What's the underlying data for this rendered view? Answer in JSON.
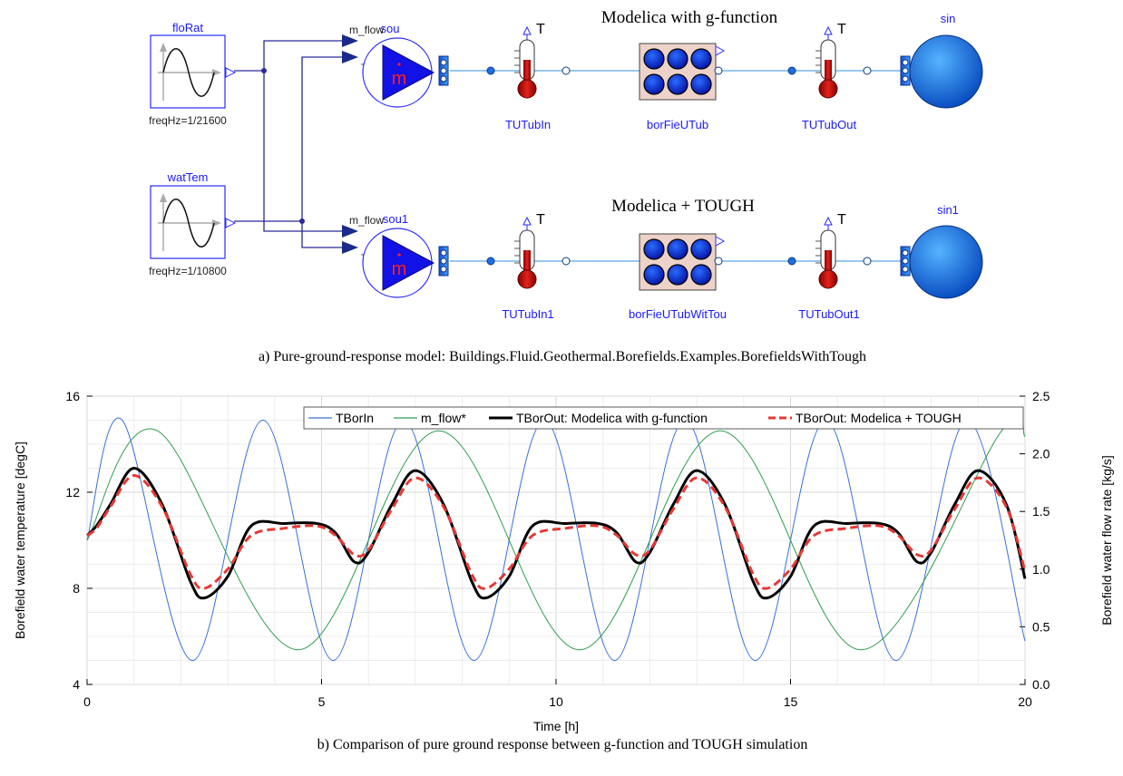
{
  "diagram": {
    "blocks": {
      "floRat": {
        "name": "floRat",
        "param": "freqHz=1/21600"
      },
      "watTem": {
        "name": "watTem",
        "param": "freqHz=1/10800"
      },
      "sou": {
        "name": "sou",
        "input1": "m_flow",
        "input2": "T",
        "symbol": "m"
      },
      "sou1": {
        "name": "sou1",
        "input1": "m_flow",
        "input2": "T",
        "symbol": "m"
      },
      "TUTubIn": {
        "name": "TUTubIn",
        "symbol": "T"
      },
      "TUTubIn1": {
        "name": "TUTubIn1",
        "symbol": "T"
      },
      "borFieUTub": {
        "name": "borFieUTub"
      },
      "borFieUTubWitTou": {
        "name": "borFieUTubWitTou"
      },
      "TUTubOut": {
        "name": "TUTubOut",
        "symbol": "T"
      },
      "TUTubOut1": {
        "name": "TUTubOut1",
        "symbol": "T"
      },
      "sin": {
        "name": "sin"
      },
      "sin1": {
        "name": "sin1"
      }
    },
    "row_titles": [
      "Modelica  with  g-function",
      "Modelica  +  TOUGH"
    ],
    "caption": "a) Pure-ground-response model: Buildings.Fluid.Geothermal.Borefields.Examples.BorefieldsWithTough"
  },
  "chart_data": {
    "type": "line",
    "caption": "b) Comparison of pure ground response between g-function and TOUGH simulation",
    "xlabel": "Time [h]",
    "ylabel_left": "Borefield water temperature [degC]",
    "ylabel_right": "Borefield water flow rate [kg/s]",
    "xlim": [
      0,
      20
    ],
    "ylim_left": [
      4,
      16
    ],
    "ylim_right": [
      0.0,
      2.5
    ],
    "xticks": [
      "0",
      "5",
      "10",
      "15",
      "20"
    ],
    "yticks_left": [
      "4",
      "8",
      "12",
      "16"
    ],
    "yticks_right": [
      "0.0",
      "0.5",
      "1.0",
      "1.5",
      "2.0",
      "2.5"
    ],
    "grid": true,
    "legend_position": "top-right",
    "series": [
      {
        "name": "TBorIn",
        "color": "#3a6fd8",
        "style": "thin",
        "axis": "left",
        "x": [
          0,
          0.75,
          2.25,
          3.75,
          5.25,
          6.75,
          8.25,
          9.75,
          11.25,
          12.75,
          14.25,
          15.75,
          17.25,
          18.75,
          20
        ],
        "y": [
          10,
          15,
          5,
          15,
          5,
          15,
          5,
          15,
          5,
          15,
          5,
          15,
          5,
          15,
          5.8
        ]
      },
      {
        "name": "m_flow*",
        "color": "#2e9e4f",
        "style": "thin",
        "axis": "right",
        "x": [
          0,
          1.5,
          4.5,
          7.5,
          10.5,
          13.5,
          16.5,
          19.5,
          20
        ],
        "y": [
          1.25,
          2.2,
          0.3,
          2.2,
          0.3,
          2.2,
          0.3,
          2.2,
          2.15
        ]
      },
      {
        "name": "TBorOut: Modelica with g-function",
        "color": "#000000",
        "style": "thick",
        "axis": "left",
        "x": [
          0,
          0.2,
          0.5,
          1.0,
          1.6,
          2.2,
          2.5,
          3.0,
          3.5,
          4.2,
          4.9,
          5.3,
          5.7,
          6.0,
          6.5,
          7.0,
          7.6,
          8.2,
          8.5,
          9.0,
          9.5,
          10.2,
          10.9,
          11.3,
          11.7,
          12.0,
          12.5,
          13.0,
          13.6,
          14.2,
          14.5,
          15.0,
          15.5,
          16.2,
          16.9,
          17.3,
          17.7,
          18.0,
          18.5,
          19.0,
          19.6,
          20
        ],
        "y": [
          10.2,
          10.6,
          11.5,
          13.0,
          11.5,
          8.3,
          7.6,
          8.5,
          10.6,
          10.7,
          10.7,
          10.3,
          9.1,
          9.5,
          11.5,
          12.9,
          11.5,
          8.3,
          7.6,
          8.5,
          10.6,
          10.7,
          10.7,
          10.3,
          9.1,
          9.5,
          11.5,
          12.9,
          11.5,
          8.3,
          7.6,
          8.5,
          10.6,
          10.7,
          10.7,
          10.3,
          9.1,
          9.5,
          11.5,
          12.9,
          11.5,
          8.4
        ]
      },
      {
        "name": "TBorOut: Modelica + TOUGH",
        "color": "#e53935",
        "style": "dashed",
        "axis": "left",
        "x": [
          0,
          0.2,
          0.5,
          1.0,
          1.6,
          2.2,
          2.5,
          3.0,
          3.5,
          4.2,
          4.9,
          5.3,
          5.7,
          6.0,
          6.5,
          7.0,
          7.6,
          8.2,
          8.5,
          9.0,
          9.5,
          10.2,
          10.9,
          11.3,
          11.7,
          12.0,
          12.5,
          13.0,
          13.6,
          14.2,
          14.5,
          15.0,
          15.5,
          16.2,
          16.9,
          17.3,
          17.7,
          18.0,
          18.5,
          19.0,
          19.6,
          20
        ],
        "y": [
          10.2,
          10.5,
          11.4,
          12.7,
          11.4,
          8.6,
          8.0,
          8.8,
          10.2,
          10.5,
          10.6,
          10.2,
          9.4,
          9.6,
          11.3,
          12.6,
          11.4,
          8.6,
          8.0,
          8.8,
          10.2,
          10.5,
          10.6,
          10.2,
          9.4,
          9.6,
          11.3,
          12.6,
          11.4,
          8.6,
          8.0,
          8.8,
          10.2,
          10.5,
          10.6,
          10.2,
          9.4,
          9.6,
          11.3,
          12.6,
          11.4,
          8.7
        ]
      }
    ]
  }
}
